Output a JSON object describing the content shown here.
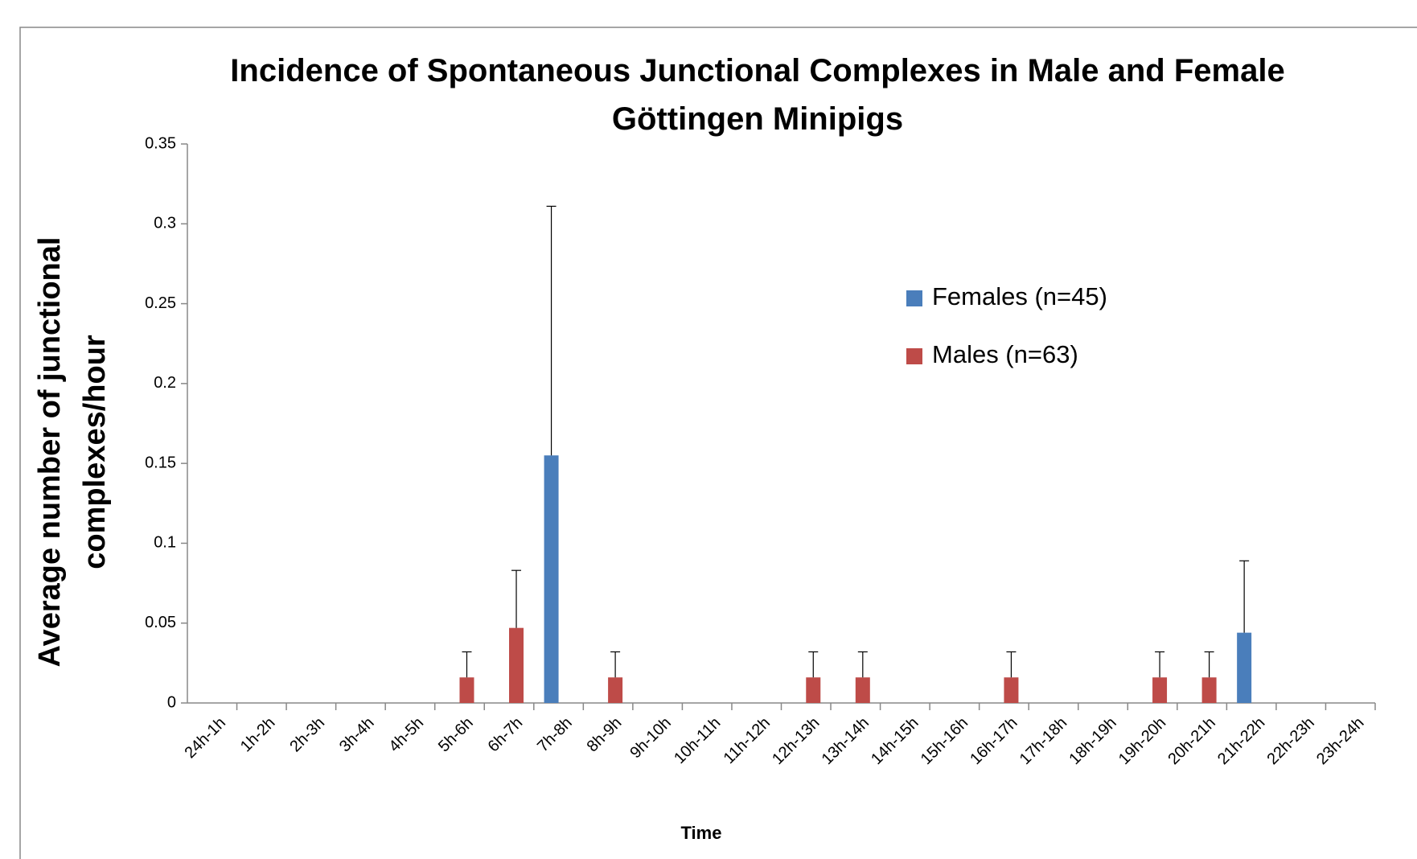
{
  "chart_data": {
    "type": "bar",
    "title": "Incidence of Spontaneous Junctional Complexes in Male and Female Göttingen Minipigs",
    "y_label": "Average number of junctional complexes/hour",
    "x_label": "Time",
    "categories": [
      "24h-1h",
      "1h-2h",
      "2h-3h",
      "3h-4h",
      "4h-5h",
      "5h-6h",
      "6h-7h",
      "7h-8h",
      "8h-9h",
      "9h-10h",
      "10h-11h",
      "11h-12h",
      "12h-13h",
      "13h-14h",
      "14h-15h",
      "15h-16h",
      "16h-17h",
      "17h-18h",
      "18h-19h",
      "19h-20h",
      "20h-21h",
      "21h-22h",
      "22h-23h",
      "23h-24h"
    ],
    "series": [
      {
        "name": "Females (n=45)",
        "color": "#4a7ebb",
        "values": [
          0,
          0,
          0,
          0,
          0,
          0,
          0,
          0.155,
          0,
          0,
          0,
          0,
          0,
          0,
          0,
          0,
          0,
          0,
          0,
          0,
          0,
          0.044,
          0,
          0
        ],
        "errors": [
          null,
          null,
          null,
          null,
          null,
          null,
          null,
          0.156,
          null,
          null,
          null,
          null,
          null,
          null,
          null,
          null,
          null,
          null,
          null,
          null,
          null,
          0.045,
          null,
          null
        ]
      },
      {
        "name": "Males (n=63)",
        "color": "#be4b48",
        "values": [
          0,
          0,
          0,
          0,
          0,
          0.016,
          0.047,
          0,
          0.016,
          0,
          0,
          0,
          0.016,
          0.016,
          0,
          0,
          0.016,
          0,
          0,
          0.016,
          0.016,
          0,
          0,
          0
        ],
        "errors": [
          null,
          null,
          null,
          null,
          null,
          0.016,
          0.036,
          null,
          0.016,
          null,
          null,
          null,
          0.016,
          0.016,
          null,
          null,
          0.016,
          null,
          null,
          0.016,
          0.016,
          null,
          null,
          null
        ]
      }
    ],
    "ylim": [
      0,
      0.35
    ],
    "yticks": [
      0,
      0.05,
      0.1,
      0.15,
      0.2,
      0.25,
      0.3,
      0.35
    ],
    "grid": false,
    "legend": "right"
  }
}
